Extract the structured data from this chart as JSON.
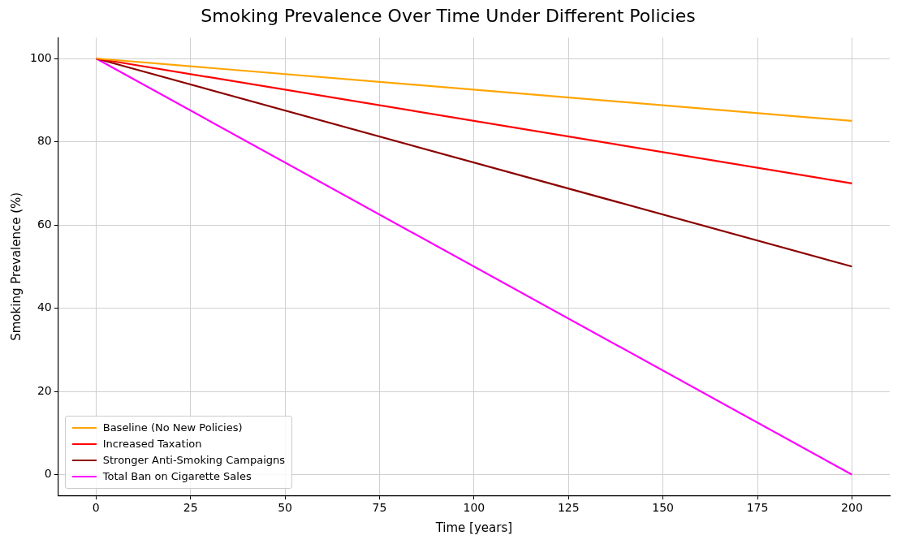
{
  "chart_data": {
    "type": "line",
    "title": "Smoking Prevalence Over Time Under Different Policies",
    "xlabel": "Time [years]",
    "ylabel": "Smoking Prevalence (%)",
    "x": [
      0,
      200
    ],
    "series": [
      {
        "name": "Baseline (No New Policies)",
        "color": "#ffa500",
        "values": [
          100,
          85
        ]
      },
      {
        "name": "Increased Taxation",
        "color": "#ff0000",
        "values": [
          100,
          70
        ]
      },
      {
        "name": "Stronger Anti-Smoking Campaigns",
        "color": "#8b0000",
        "values": [
          100,
          50
        ]
      },
      {
        "name": "Total Ban on Cigarette Sales",
        "color": "#ff00ff",
        "values": [
          100,
          0
        ]
      }
    ],
    "xlim": [
      -10,
      210
    ],
    "xticks": [
      0,
      25,
      50,
      75,
      100,
      125,
      150,
      175,
      200
    ],
    "ylim": [
      -5,
      105
    ],
    "yticks": [
      0,
      20,
      40,
      60,
      80,
      100
    ],
    "grid": true,
    "legend": "bottom left",
    "marker": "none",
    "line_style": "solid"
  }
}
